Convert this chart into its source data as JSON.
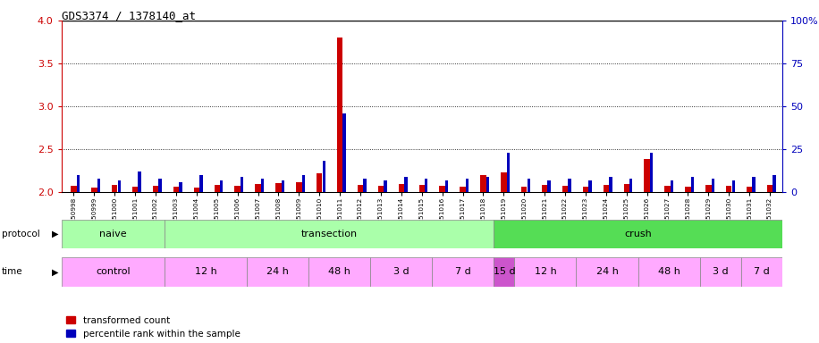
{
  "title": "GDS3374 / 1378140_at",
  "samples": [
    "GSM250998",
    "GSM250999",
    "GSM251000",
    "GSM251001",
    "GSM251002",
    "GSM251003",
    "GSM251004",
    "GSM251005",
    "GSM251006",
    "GSM251007",
    "GSM251008",
    "GSM251009",
    "GSM251010",
    "GSM251011",
    "GSM251012",
    "GSM251013",
    "GSM251014",
    "GSM251015",
    "GSM251016",
    "GSM251017",
    "GSM251018",
    "GSM251019",
    "GSM251020",
    "GSM251021",
    "GSM251022",
    "GSM251023",
    "GSM251024",
    "GSM251025",
    "GSM251026",
    "GSM251027",
    "GSM251028",
    "GSM251029",
    "GSM251030",
    "GSM251031",
    "GSM251032"
  ],
  "red_values": [
    2.07,
    2.05,
    2.08,
    2.06,
    2.07,
    2.06,
    2.05,
    2.08,
    2.07,
    2.09,
    2.1,
    2.12,
    2.22,
    3.8,
    2.08,
    2.07,
    2.09,
    2.08,
    2.07,
    2.06,
    2.2,
    2.23,
    2.06,
    2.08,
    2.07,
    2.06,
    2.08,
    2.09,
    2.39,
    2.07,
    2.06,
    2.08,
    2.07,
    2.06,
    2.08
  ],
  "blue_values_pct": [
    10,
    8,
    7,
    12,
    8,
    6,
    10,
    7,
    9,
    8,
    7,
    10,
    18,
    46,
    8,
    7,
    9,
    8,
    7,
    8,
    9,
    23,
    8,
    7,
    8,
    7,
    9,
    8,
    23,
    7,
    9,
    8,
    7,
    9,
    10
  ],
  "ylim_left": [
    2.0,
    4.0
  ],
  "yticks_left": [
    2.0,
    2.5,
    3.0,
    3.5,
    4.0
  ],
  "yticks_right_pct": [
    0,
    25,
    50,
    75,
    100
  ],
  "red_color": "#CC0000",
  "blue_color": "#0000BB",
  "bg_color": "#FFFFFF",
  "plot_bg": "#FFFFFF",
  "grid_color": "#000000",
  "top_line_color": "#000000",
  "proto_groups": [
    {
      "label": "naive",
      "start": 0,
      "end": 5,
      "color": "#AAFFAA"
    },
    {
      "label": "transection",
      "start": 5,
      "end": 21,
      "color": "#AAFFAA"
    },
    {
      "label": "crush",
      "start": 21,
      "end": 35,
      "color": "#55DD55"
    }
  ],
  "time_groups": [
    {
      "label": "control",
      "start": 0,
      "end": 5,
      "color": "#FFAAFF"
    },
    {
      "label": "12 h",
      "start": 5,
      "end": 9,
      "color": "#FFAAFF"
    },
    {
      "label": "24 h",
      "start": 9,
      "end": 12,
      "color": "#FFAAFF"
    },
    {
      "label": "48 h",
      "start": 12,
      "end": 15,
      "color": "#FFAAFF"
    },
    {
      "label": "3 d",
      "start": 15,
      "end": 18,
      "color": "#FFAAFF"
    },
    {
      "label": "7 d",
      "start": 18,
      "end": 21,
      "color": "#FFAAFF"
    },
    {
      "label": "15 d",
      "start": 21,
      "end": 22,
      "color": "#CC55CC"
    },
    {
      "label": "12 h",
      "start": 22,
      "end": 25,
      "color": "#FFAAFF"
    },
    {
      "label": "24 h",
      "start": 25,
      "end": 28,
      "color": "#FFAAFF"
    },
    {
      "label": "48 h",
      "start": 28,
      "end": 31,
      "color": "#FFAAFF"
    },
    {
      "label": "3 d",
      "start": 31,
      "end": 33,
      "color": "#FFAAFF"
    },
    {
      "label": "7 d",
      "start": 33,
      "end": 35,
      "color": "#FFAAFF"
    }
  ],
  "legend_red": "transformed count",
  "legend_blue": "percentile rank within the sample"
}
